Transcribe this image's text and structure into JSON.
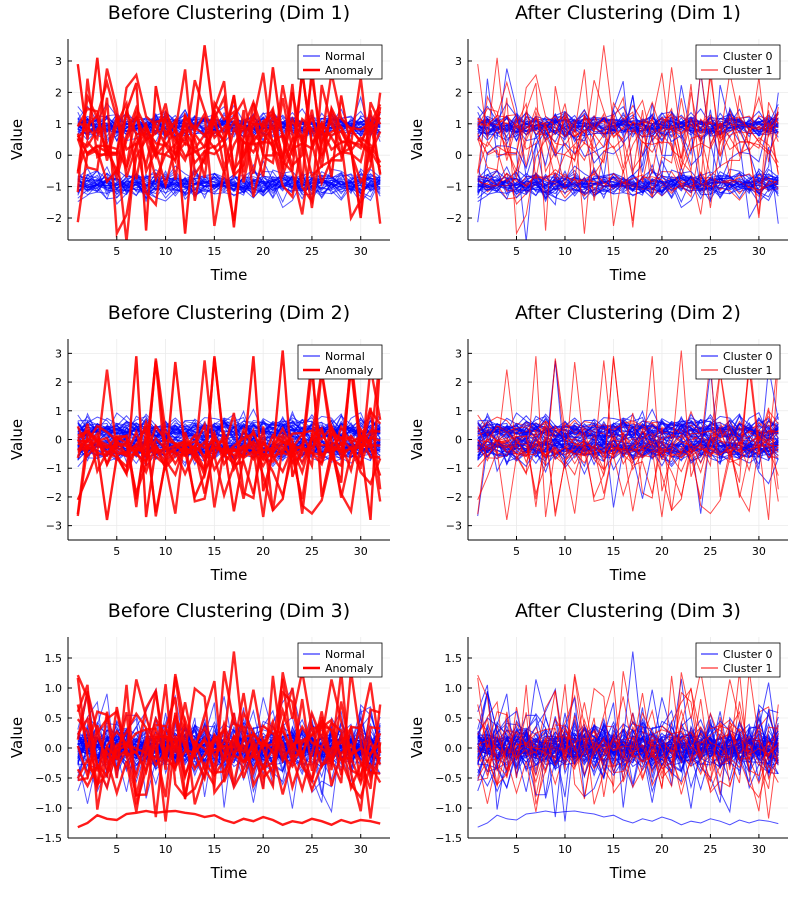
{
  "figure": {
    "layout": "3 rows x 2 columns"
  },
  "colors": {
    "normal": "#0000ff",
    "anomaly": "#ff0000",
    "axis": "#000000",
    "grid": "#ebebeb"
  },
  "chart_data": [
    {
      "type": "line",
      "title": "Before Clustering (Dim 1)",
      "xlabel": "Time",
      "ylabel": "Value",
      "xlim": [
        0,
        33
      ],
      "ylim": [
        -2.7,
        3.7
      ],
      "xticks": [
        5,
        10,
        15,
        20,
        25,
        30
      ],
      "yticks": [
        -2,
        -1,
        0,
        1,
        2,
        3
      ],
      "grid": true,
      "legend": {
        "position": "top-right",
        "entries": [
          "Normal",
          "Anomaly"
        ]
      },
      "x": "1..32",
      "series": [
        {
          "name": "Normal",
          "color": "#0000ff",
          "line_width": "thin",
          "count": 60,
          "description": "two bands near +1 and -1"
        },
        {
          "name": "Anomaly",
          "color": "#ff0000",
          "line_width": "thick",
          "count": 12,
          "example_values": [
            2.9,
            0.5,
            3.1,
            0.2,
            -0.5,
            1.4,
            2.3,
            -2.4,
            2.2,
            0.6,
            1.1,
            -2.5,
            0.8,
            3.5,
            1.0,
            0.4,
            -2.3,
            0.6,
            1.2,
            0.0,
            2.8,
            0.5,
            -0.5,
            2.7,
            0.3,
            1.0,
            -0.7,
            1.9,
            0.2,
            -2.0,
            0.8,
            1.2
          ]
        }
      ]
    },
    {
      "type": "line",
      "title": "After Clustering (Dim 1)",
      "xlabel": "Time",
      "ylabel": "Value",
      "xlim": [
        0,
        33
      ],
      "ylim": [
        -2.7,
        3.7
      ],
      "xticks": [
        5,
        10,
        15,
        20,
        25,
        30
      ],
      "yticks": [
        -2,
        -1,
        0,
        1,
        2,
        3
      ],
      "grid": true,
      "legend": {
        "position": "top-right",
        "entries": [
          "Cluster 0",
          "Cluster 1"
        ]
      },
      "series": [
        {
          "name": "Cluster 0",
          "color": "#0000ff",
          "line_width": "thin",
          "count": 55
        },
        {
          "name": "Cluster 1",
          "color": "#ff0000",
          "line_width": "thin",
          "count": 17
        }
      ]
    },
    {
      "type": "line",
      "title": "Before Clustering (Dim 2)",
      "xlabel": "Time",
      "ylabel": "Value",
      "xlim": [
        0,
        33
      ],
      "ylim": [
        -3.5,
        3.5
      ],
      "xticks": [
        5,
        10,
        15,
        20,
        25,
        30
      ],
      "yticks": [
        -3,
        -2,
        -1,
        0,
        1,
        2,
        3
      ],
      "grid": true,
      "legend": {
        "position": "top-right",
        "entries": [
          "Normal",
          "Anomaly"
        ]
      },
      "series": [
        {
          "name": "Normal",
          "color": "#0000ff",
          "line_width": "thin",
          "count": 60,
          "description": "band between -0.5 and 0.5"
        },
        {
          "name": "Anomaly",
          "color": "#ff0000",
          "line_width": "thick",
          "count": 12,
          "example_values": [
            -2.1,
            -1.3,
            -0.4,
            -2.8,
            -0.6,
            -1.2,
            2.9,
            -2.7,
            -0.3,
            -1.0,
            2.7,
            -0.4,
            -2.0,
            -1.2,
            2.9,
            -0.2,
            -2.5,
            -0.6,
            2.9,
            -1.8,
            -0.5,
            3.1,
            -1.3,
            -0.3,
            2.8,
            -2.0,
            -0.4,
            -1.5,
            2.9,
            -0.2,
            -2.8,
            2.8
          ]
        }
      ]
    },
    {
      "type": "line",
      "title": "After Clustering (Dim 2)",
      "xlabel": "Time",
      "ylabel": "Value",
      "xlim": [
        0,
        33
      ],
      "ylim": [
        -3.5,
        3.5
      ],
      "xticks": [
        5,
        10,
        15,
        20,
        25,
        30
      ],
      "yticks": [
        -3,
        -2,
        -1,
        0,
        1,
        2,
        3
      ],
      "grid": true,
      "legend": {
        "position": "top-right",
        "entries": [
          "Cluster 0",
          "Cluster 1"
        ]
      },
      "series": [
        {
          "name": "Cluster 0",
          "color": "#0000ff",
          "line_width": "thin",
          "count": 55
        },
        {
          "name": "Cluster 1",
          "color": "#ff0000",
          "line_width": "thin",
          "count": 17
        }
      ]
    },
    {
      "type": "line",
      "title": "Before Clustering (Dim 3)",
      "xlabel": "Time",
      "ylabel": "Value",
      "xlim": [
        0,
        33
      ],
      "ylim": [
        -1.5,
        1.85
      ],
      "xticks": [
        5,
        10,
        15,
        20,
        25,
        30
      ],
      "yticks": [
        -1.5,
        -1.0,
        -0.5,
        0.0,
        0.5,
        1.0,
        1.5
      ],
      "ytick_labels": [
        "-1.5",
        "-1.0",
        "-0.5",
        "0.0",
        "0.5",
        "1.0",
        "1.5"
      ],
      "grid": true,
      "legend": {
        "position": "top-right",
        "entries": [
          "Normal",
          "Anomaly"
        ]
      },
      "series": [
        {
          "name": "Normal",
          "color": "#0000ff",
          "line_width": "thin",
          "count": 60,
          "description": "band between -0.4 and 0.4"
        },
        {
          "name": "Anomaly",
          "color": "#ff0000",
          "line_width": "thick",
          "count": 12,
          "example_values": [
            -1.32,
            -1.25,
            -1.12,
            -1.18,
            -1.2,
            -1.1,
            -1.08,
            -1.05,
            -1.08,
            -1.06,
            -1.05,
            -1.08,
            -1.1,
            -1.15,
            -1.12,
            -1.2,
            -1.25,
            -1.18,
            -1.22,
            -1.15,
            -1.2,
            -1.28,
            -1.22,
            -1.25,
            -1.18,
            -1.22,
            -1.28,
            -1.2,
            -1.25,
            -1.2,
            -1.22,
            -1.26
          ]
        }
      ]
    },
    {
      "type": "line",
      "title": "After Clustering (Dim 3)",
      "xlabel": "Time",
      "ylabel": "Value",
      "xlim": [
        0,
        33
      ],
      "ylim": [
        -1.5,
        1.85
      ],
      "xticks": [
        5,
        10,
        15,
        20,
        25,
        30
      ],
      "yticks": [
        -1.5,
        -1.0,
        -0.5,
        0.0,
        0.5,
        1.0,
        1.5
      ],
      "ytick_labels": [
        "-1.5",
        "-1.0",
        "-0.5",
        "0.0",
        "0.5",
        "1.0",
        "1.5"
      ],
      "grid": true,
      "legend": {
        "position": "top-right",
        "entries": [
          "Cluster 0",
          "Cluster 1"
        ]
      },
      "series": [
        {
          "name": "Cluster 0",
          "color": "#0000ff",
          "line_width": "thin",
          "count": 55
        },
        {
          "name": "Cluster 1",
          "color": "#ff0000",
          "line_width": "thin",
          "count": 17
        }
      ]
    }
  ]
}
